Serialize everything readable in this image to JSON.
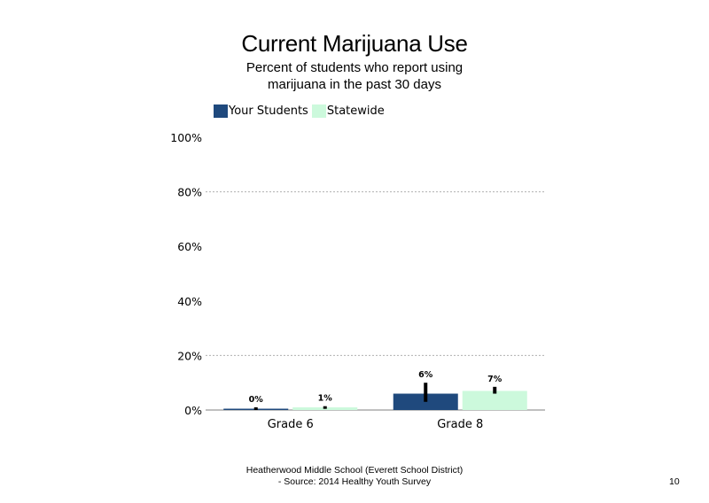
{
  "title": "Current Marijuana Use",
  "subtitle": "Percent of students who report using marijuana in the past 30 days",
  "footer": {
    "line1": "Heatherwood Middle School (Everett School District)",
    "line2": "- Source: 2014 Healthy Youth Survey"
  },
  "page_number": "10",
  "colors": {
    "your_students": "#1f497d",
    "statewide": "#ccf9dc",
    "grid": "#b0b0b0",
    "error_bar": "#000000"
  },
  "chart_data": {
    "type": "bar",
    "title": "Current Marijuana Use",
    "subtitle": "Percent of students who report using marijuana in the past 30 days",
    "categories": [
      "Grade 6",
      "Grade 8"
    ],
    "series": [
      {
        "name": "Your Students",
        "values": [
          0,
          6
        ],
        "labels": [
          "0%",
          "6%"
        ],
        "error_low": [
          0,
          3
        ],
        "error_high": [
          1,
          10
        ]
      },
      {
        "name": "Statewide",
        "values": [
          1,
          7
        ],
        "labels": [
          "1%",
          "7%"
        ],
        "error_low": [
          0.6,
          6
        ],
        "error_high": [
          1.4,
          8.5
        ]
      }
    ],
    "yticks": [
      "0%",
      "20%",
      "40%",
      "60%",
      "80%",
      "100%"
    ],
    "ylim": [
      0,
      100
    ],
    "gridlines": [
      20,
      80
    ],
    "legend_position": "top-left"
  }
}
